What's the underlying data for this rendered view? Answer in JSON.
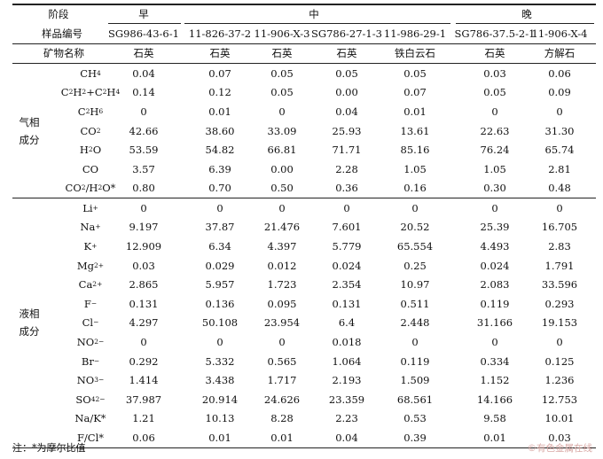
{
  "header": {
    "stage_label": "阶段",
    "sample_label": "样品编号",
    "mineral_label": "矿物名称",
    "stages": [
      "早",
      "中",
      "晚"
    ],
    "samples": [
      "SG986-43-6-1",
      "11-826-37-2",
      "11-906-X-3",
      "SG786-27-1-3",
      "11-986-29-1",
      "SG786-37.5-2-1",
      "11-906-X-4"
    ],
    "minerals": [
      "石英",
      "石英",
      "石英",
      "石英",
      "铁白云石",
      "石英",
      "方解石"
    ]
  },
  "gas_group": [
    "气相",
    "成分"
  ],
  "liquid_group": [
    "液相",
    "成分"
  ],
  "gas_rows": [
    {
      "label": "CH₄",
      "values": [
        "0.04",
        "0.07",
        "0.05",
        "0.05",
        "0.05",
        "0.03",
        "0.06"
      ]
    },
    {
      "label": "C₂H₂+C₂H₄",
      "values": [
        "0.14",
        "0.12",
        "0.05",
        "0.00",
        "0.07",
        "0.05",
        "0.09"
      ]
    },
    {
      "label": "C₂H₆",
      "values": [
        "0",
        "0.01",
        "0",
        "0.04",
        "0.01",
        "0",
        "0"
      ]
    },
    {
      "label": "CO₂",
      "values": [
        "42.66",
        "38.60",
        "33.09",
        "25.93",
        "13.61",
        "22.63",
        "31.30"
      ]
    },
    {
      "label": "H₂O",
      "values": [
        "53.59",
        "54.82",
        "66.81",
        "71.71",
        "85.16",
        "76.24",
        "65.74"
      ]
    },
    {
      "label": "CO",
      "values": [
        "3.57",
        "6.39",
        "0.00",
        "2.28",
        "1.05",
        "1.05",
        "2.81"
      ]
    },
    {
      "label": "CO₂/H₂O*",
      "values": [
        "0.80",
        "0.70",
        "0.50",
        "0.36",
        "0.16",
        "0.30",
        "0.48"
      ]
    }
  ],
  "liquid_rows": [
    {
      "label": "Li⁺",
      "values": [
        "0",
        "0",
        "0",
        "0",
        "0",
        "0",
        "0"
      ]
    },
    {
      "label": "Na⁺",
      "values": [
        "9.197",
        "37.87",
        "21.476",
        "7.601",
        "20.52",
        "25.39",
        "16.705"
      ]
    },
    {
      "label": "K⁺",
      "values": [
        "12.909",
        "6.34",
        "4.397",
        "5.779",
        "65.554",
        "4.493",
        "2.83"
      ]
    },
    {
      "label": "Mg²⁺",
      "values": [
        "0.03",
        "0.029",
        "0.012",
        "0.024",
        "0.25",
        "0.024",
        "1.791"
      ]
    },
    {
      "label": "Ca²⁺",
      "values": [
        "2.865",
        "5.957",
        "1.723",
        "2.354",
        "10.97",
        "2.083",
        "33.596"
      ]
    },
    {
      "label": "F⁻",
      "values": [
        "0.131",
        "0.136",
        "0.095",
        "0.131",
        "0.511",
        "0.119",
        "0.293"
      ]
    },
    {
      "label": "Cl⁻",
      "values": [
        "4.297",
        "50.108",
        "23.954",
        "6.4",
        "2.448",
        "31.166",
        "19.153"
      ]
    },
    {
      "label": "NO₂⁻",
      "values": [
        "0",
        "0",
        "0",
        "0.018",
        "0",
        "0",
        "0"
      ]
    },
    {
      "label": "Br⁻",
      "values": [
        "0.292",
        "5.332",
        "0.565",
        "1.064",
        "0.119",
        "0.334",
        "0.125"
      ]
    },
    {
      "label": "NO₃⁻",
      "values": [
        "1.414",
        "3.438",
        "1.717",
        "2.193",
        "1.509",
        "1.152",
        "1.236"
      ]
    },
    {
      "label": "SO₄²⁻",
      "values": [
        "37.987",
        "20.914",
        "24.626",
        "23.359",
        "68.561",
        "14.166",
        "12.753"
      ]
    },
    {
      "label": "Na/K*",
      "values": [
        "1.21",
        "10.13",
        "8.28",
        "2.23",
        "0.53",
        "9.58",
        "10.01"
      ]
    },
    {
      "label": "F/Cl*",
      "values": [
        "0.06",
        "0.01",
        "0.01",
        "0.04",
        "0.39",
        "0.01",
        "0.03"
      ]
    }
  ],
  "footnote": "注：*为摩尔比值",
  "watermark": "©有色金属在线"
}
